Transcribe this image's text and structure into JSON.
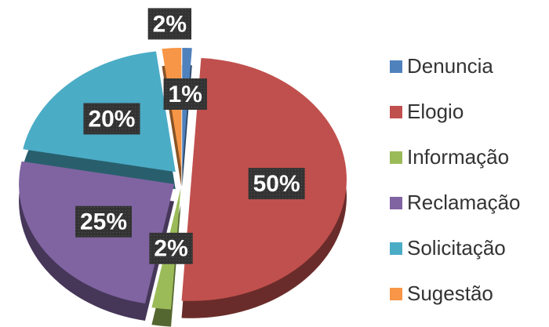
{
  "chart_data": {
    "type": "pie",
    "categories": [
      "Denuncia",
      "Elogio",
      "Informação",
      "Reclamação",
      "Solicitação",
      "Sugestão"
    ],
    "values": [
      1,
      50,
      2,
      25,
      20,
      2
    ],
    "value_labels": [
      "1%",
      "50%",
      "2%",
      "25%",
      "20%",
      "2%"
    ],
    "colors": [
      "#4f81bd",
      "#c0504d",
      "#9bbb59",
      "#8064a2",
      "#4bacc6",
      "#f79646"
    ],
    "legend": "right"
  }
}
